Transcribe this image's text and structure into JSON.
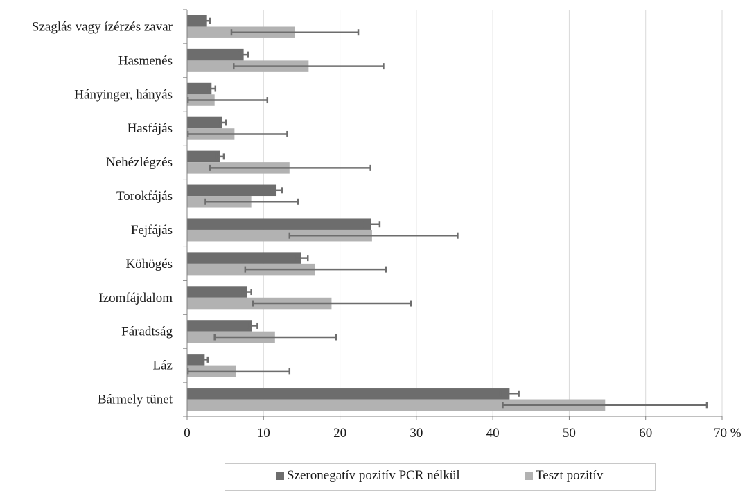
{
  "colors": {
    "series1": "#6d6d6d",
    "series2": "#b2b2b2",
    "grid": "#d9d9d9",
    "axis": "#808080",
    "errorbar": "#6d6d6d"
  },
  "chart_data": {
    "type": "bar",
    "orientation": "horizontal",
    "categories": [
      "Szaglás vagy ízérzés zavar",
      "Hasmenés",
      "Hányinger, hányás",
      "Hasfájás",
      "Nehézlégzés",
      "Torokfájás",
      "Fejfájás",
      "Köhögés",
      "Izomfájdalom",
      "Fáradtság",
      "Láz",
      "Bármely tünet"
    ],
    "series": [
      {
        "name": "Szeronegatív pozitív PCR nélkül",
        "values": [
          2.6,
          7.4,
          3.2,
          4.6,
          4.3,
          11.7,
          24.1,
          14.9,
          7.8,
          8.5,
          2.3,
          42.2
        ],
        "error_low": [
          2.2,
          6.8,
          2.8,
          4.1,
          3.8,
          11.0,
          23.1,
          14.1,
          7.2,
          7.9,
          1.9,
          41.0
        ],
        "error_high": [
          3.0,
          8.0,
          3.7,
          5.1,
          4.8,
          12.4,
          25.2,
          15.8,
          8.4,
          9.2,
          2.7,
          43.4
        ]
      },
      {
        "name": "Teszt pozitív",
        "values": [
          14.1,
          15.9,
          3.6,
          6.2,
          13.4,
          8.4,
          24.2,
          16.7,
          18.9,
          11.5,
          6.4,
          54.7
        ],
        "error_low": [
          5.8,
          6.1,
          0.1,
          0.1,
          3.0,
          2.4,
          13.4,
          7.6,
          8.6,
          3.6,
          0.1,
          41.3
        ],
        "error_high": [
          22.4,
          25.7,
          10.5,
          13.1,
          24.0,
          14.5,
          35.4,
          26.0,
          29.3,
          19.5,
          13.4,
          68.0
        ]
      }
    ],
    "xlim": [
      0,
      70
    ],
    "xticks": [
      "0",
      "10",
      "20",
      "30",
      "40",
      "50",
      "60",
      "70 %"
    ],
    "grid": true,
    "legend_position": "bottom"
  }
}
